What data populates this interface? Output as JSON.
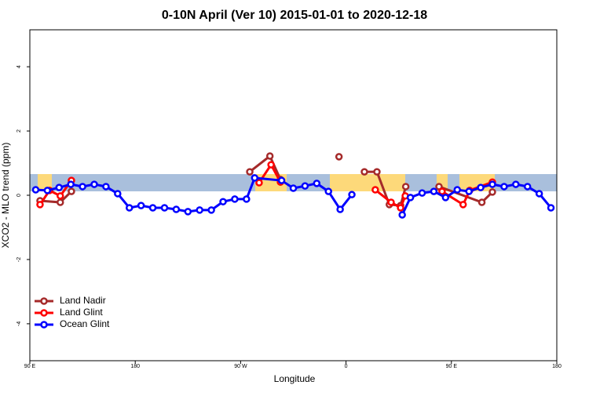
{
  "chart_data": {
    "type": "line",
    "title": "0-10N April (Ver 10)   2015-01-01 to 2020-12-18",
    "xlabel": "Longitude",
    "ylabel": "XCO2 - MLO trend (ppm)",
    "xlim": [
      90,
      540
    ],
    "ylim": [
      -5.15,
      5.15
    ],
    "xticks": [
      {
        "value": 90,
        "label": "90 E"
      },
      {
        "value": 180,
        "label": "180"
      },
      {
        "value": 270,
        "label": "90 W"
      },
      {
        "value": 360,
        "label": "0"
      },
      {
        "value": 450,
        "label": "90 E"
      },
      {
        "value": 540,
        "label": "180"
      }
    ],
    "yticks": [
      -4,
      -2,
      0,
      2,
      4
    ],
    "legend": "bottom-left",
    "series": [
      {
        "name": "Land Nadir",
        "color": "#a52a2a",
        "x": [
          98.7,
          116,
          125.5,
          null,
          277.8,
          295,
          304,
          null,
          354,
          null,
          375.7,
          386.4,
          397,
          406.6,
          411,
          null,
          439.4,
          476,
          485
        ],
        "values": [
          -0.17,
          -0.22,
          0.12,
          null,
          0.73,
          1.22,
          0.49,
          null,
          1.2,
          null,
          0.73,
          0.73,
          -0.29,
          -0.32,
          0.27,
          null,
          0.27,
          -0.22,
          0.1
        ]
      },
      {
        "name": "Land Glint",
        "color": "#ff0000",
        "x": [
          98.7,
          106.8,
          116,
          125.5,
          null,
          285.8,
          296,
          304,
          null,
          385,
          398.5,
          406.6,
          410.6,
          null,
          442,
          460,
          465.6,
          485
        ],
        "values": [
          -0.29,
          0.15,
          -0.02,
          0.46,
          null,
          0.39,
          0.95,
          0.41,
          null,
          0.17,
          -0.22,
          -0.39,
          -0.02,
          null,
          0.12,
          -0.29,
          0.15,
          0.41
        ]
      },
      {
        "name": "Ocean Glint",
        "color": "#0000ff",
        "x": [
          95,
          105,
          115,
          125,
          135,
          145,
          155,
          165,
          175,
          185,
          195,
          205,
          215,
          225,
          235,
          245,
          255,
          265,
          275,
          282,
          305,
          315,
          325,
          335,
          345,
          355,
          365,
          null,
          408,
          415,
          425,
          435,
          445,
          455,
          465,
          475,
          485,
          495,
          505,
          515,
          525,
          535
        ],
        "values": [
          0.17,
          0.15,
          0.24,
          0.34,
          0.27,
          0.34,
          0.27,
          0.05,
          -0.39,
          -0.32,
          -0.39,
          -0.39,
          -0.44,
          -0.51,
          -0.46,
          -0.46,
          -0.2,
          -0.12,
          -0.12,
          0.54,
          0.46,
          0.22,
          0.29,
          0.37,
          0.12,
          -0.44,
          0.02,
          null,
          -0.61,
          -0.07,
          0.07,
          0.12,
          -0.07,
          0.17,
          0.12,
          0.24,
          0.34,
          0.27,
          0.34,
          0.27,
          0.05,
          -0.39
        ]
      }
    ]
  }
}
